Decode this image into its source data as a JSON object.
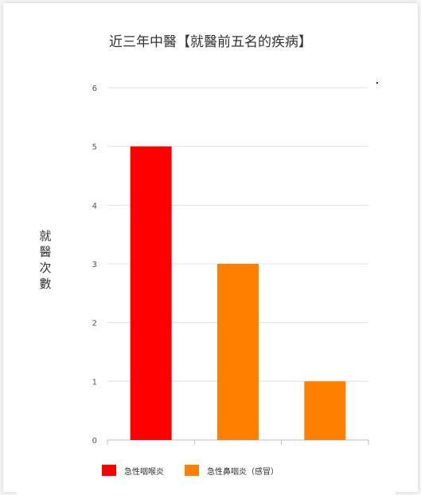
{
  "chart_data": {
    "type": "bar",
    "title": "近三年中醫【就醫前五名的疾病】",
    "ylabel": "就醫次數",
    "xlabel": "",
    "categories": [
      "急性咽喉炎",
      "急性鼻咽炎（感冒）",
      ""
    ],
    "values": [
      5,
      3,
      1
    ],
    "colors": [
      "#ff0000",
      "#ff8000",
      "#ff8000"
    ],
    "ylim": [
      0,
      6
    ],
    "yticks": [
      0,
      1,
      2,
      3,
      4,
      5,
      6
    ],
    "grid": true,
    "legend_position": "bottom-left",
    "legend": [
      {
        "label": "急性咽喉炎",
        "color": "#ff0000"
      },
      {
        "label": "急性鼻咽炎（感冒）",
        "color": "#ff8000"
      }
    ]
  }
}
